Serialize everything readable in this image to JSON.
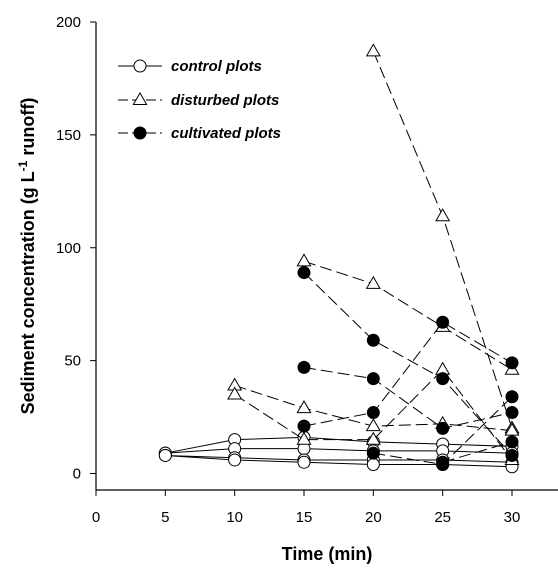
{
  "chart_data": {
    "type": "scatter",
    "xlabel": "Time (min)",
    "ylabel_main": "Sediment concentration (g L",
    "ylabel_sup": "-1",
    "ylabel_tail": " runoff)",
    "xlim": [
      0,
      30
    ],
    "ylim": [
      -5,
      200
    ],
    "xticks": [
      "0",
      "5",
      "10",
      "15",
      "20",
      "25",
      "30"
    ],
    "yticks": [
      "0",
      "50",
      "100",
      "150",
      "200"
    ],
    "grid": false,
    "legend_position": "top-left",
    "legend": [
      {
        "label": "control plots",
        "marker": "circle-open",
        "line": "solid"
      },
      {
        "label": "disturbed plots",
        "marker": "triangle-open",
        "line": "dash"
      },
      {
        "label": "cultivated plots",
        "marker": "circle-filled",
        "line": "dash"
      }
    ],
    "series": [
      {
        "group": "control",
        "marker": "circle-open",
        "line": "solid",
        "x": [
          5,
          10,
          15,
          20,
          25,
          30
        ],
        "y": [
          9,
          15,
          16,
          14,
          13,
          12
        ]
      },
      {
        "group": "control",
        "marker": "circle-open",
        "line": "solid",
        "x": [
          5,
          10,
          15,
          20,
          25,
          30
        ],
        "y": [
          9,
          11,
          11,
          10,
          10,
          9
        ]
      },
      {
        "group": "control",
        "marker": "circle-open",
        "line": "solid",
        "x": [
          5,
          10,
          15,
          20,
          25,
          30
        ],
        "y": [
          8,
          7,
          6,
          6,
          6,
          5
        ]
      },
      {
        "group": "control",
        "marker": "circle-open",
        "line": "solid",
        "x": [
          5,
          10,
          15,
          20,
          25,
          30
        ],
        "y": [
          8,
          6,
          5,
          4,
          4,
          3
        ]
      },
      {
        "group": "disturbed",
        "marker": "triangle-open",
        "line": "dash",
        "x": [
          20,
          25,
          30
        ],
        "y": [
          187,
          114,
          20
        ]
      },
      {
        "group": "disturbed",
        "marker": "triangle-open",
        "line": "dash",
        "x": [
          15,
          20,
          25,
          30
        ],
        "y": [
          94,
          84,
          65,
          46
        ]
      },
      {
        "group": "disturbed",
        "marker": "triangle-open",
        "line": "dash",
        "x": [
          10,
          15,
          20,
          25,
          30
        ],
        "y": [
          39,
          29,
          21,
          22,
          19
        ]
      },
      {
        "group": "disturbed",
        "marker": "triangle-open",
        "line": "dash",
        "x": [
          10,
          15,
          20,
          25,
          30
        ],
        "y": [
          35,
          15,
          15,
          46,
          6
        ]
      },
      {
        "group": "cultivated",
        "marker": "circle-filled",
        "line": "dash",
        "x": [
          15,
          20,
          25,
          30
        ],
        "y": [
          89,
          59,
          42,
          8
        ]
      },
      {
        "group": "cultivated",
        "marker": "circle-filled",
        "line": "dash",
        "x": [
          15,
          20,
          25,
          30
        ],
        "y": [
          47,
          42,
          20,
          27
        ]
      },
      {
        "group": "cultivated",
        "marker": "circle-filled",
        "line": "dash",
        "x": [
          15,
          20,
          25,
          30
        ],
        "y": [
          21,
          27,
          67,
          49
        ]
      },
      {
        "group": "cultivated",
        "marker": "circle-filled",
        "line": "dash",
        "x": [
          20,
          25,
          30
        ],
        "y": [
          9,
          4,
          34
        ]
      },
      {
        "group": "cultivated",
        "marker": "circle-filled",
        "line": "dash",
        "x": [
          25,
          30
        ],
        "y": [
          5,
          14
        ]
      }
    ]
  }
}
